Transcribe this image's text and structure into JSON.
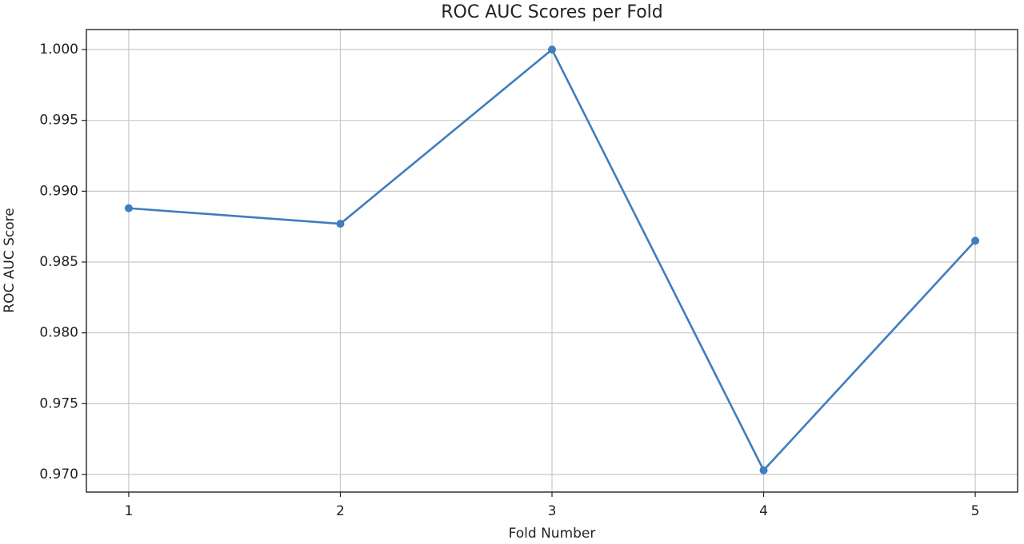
{
  "chart_data": {
    "type": "line",
    "title": "ROC AUC Scores per Fold",
    "x_label": "Fold Number",
    "y_label": "ROC AUC Score",
    "x": [
      1,
      2,
      3,
      4,
      5
    ],
    "values": [
      0.9888,
      0.9877,
      1.0,
      0.9703,
      0.9865
    ],
    "color": "#3f7dbf",
    "marker": true,
    "xlim": [
      0.8,
      5.2
    ],
    "xticks": [
      1,
      2,
      3,
      4,
      5
    ],
    "ylim": [
      0.96876,
      1.00141
    ],
    "yticks": [
      {
        "value": 0.97,
        "label": "0.970"
      },
      0.975,
      {
        "value": 0.98,
        "label": "0.980"
      },
      0.985,
      {
        "value": 0.99,
        "label": "0.990"
      },
      0.995,
      {
        "value": 1.0,
        "label": "1.000"
      }
    ],
    "grid": true
  }
}
